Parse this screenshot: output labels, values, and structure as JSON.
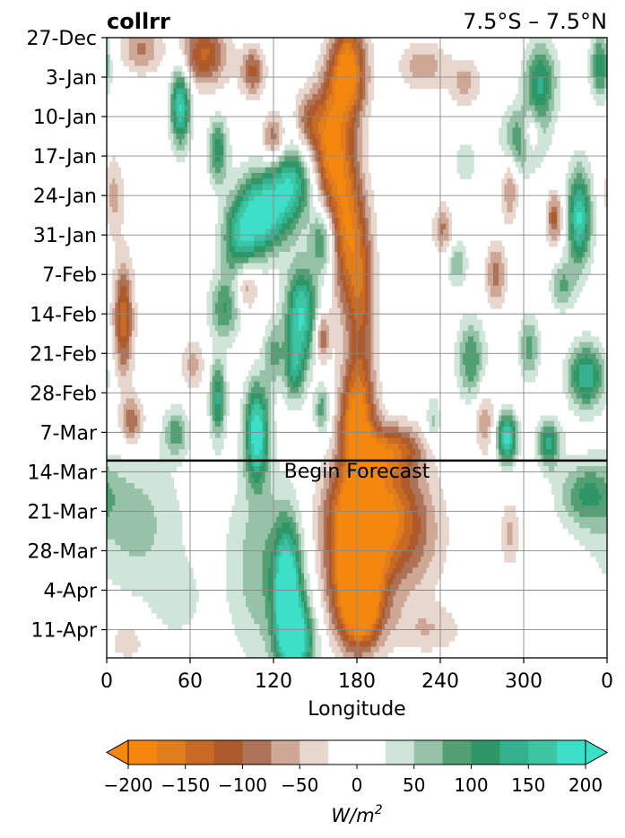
{
  "chart_data": {
    "type": "heatmap",
    "title_left": "collrr",
    "title_right": "7.5°S – 7.5°N",
    "xlabel": "Longitude",
    "x_ticks": [
      "0",
      "60",
      "120",
      "180",
      "240",
      "300",
      "0"
    ],
    "x_range": [
      0,
      360
    ],
    "y_ticks": [
      "27-Dec",
      "3-Jan",
      "10-Jan",
      "17-Jan",
      "24-Jan",
      "31-Jan",
      "7-Feb",
      "14-Feb",
      "21-Feb",
      "28-Feb",
      "7-Mar",
      "14-Mar",
      "21-Mar",
      "28-Mar",
      "4-Apr",
      "11-Apr"
    ],
    "y_range_days": [
      0,
      110
    ],
    "forecast_start_day": 75,
    "annotation": "Begin Forecast",
    "grid": true,
    "colorbar": {
      "label": "W/m²",
      "label_base": "W/m",
      "label_sup": "2",
      "ticks": [
        "−200",
        "−150",
        "−100",
        "−50",
        "0",
        "50",
        "100",
        "150",
        "200"
      ],
      "tick_values": [
        -200,
        -150,
        -100,
        -50,
        0,
        50,
        100,
        150,
        200
      ],
      "levels": [
        -200,
        -175,
        -150,
        -125,
        -100,
        -75,
        -50,
        -25,
        25,
        50,
        75,
        100,
        125,
        150,
        175,
        200
      ],
      "colors": [
        "#f4870f",
        "#e17d1c",
        "#c96a24",
        "#ad5a2c",
        "#ae7258",
        "#cfa796",
        "#e8d7ce",
        "#ffffff",
        "#d0e5da",
        "#96c2a8",
        "#52a073",
        "#2f9668",
        "#34b18e",
        "#3cc6a4",
        "#3ddfc9"
      ],
      "extend_low_color": "#f4870f",
      "extend_high_color": "#3ddfc9"
    },
    "features": [
      {
        "lon": 180,
        "day": 93,
        "a": -220,
        "sx": 15,
        "sy": 9
      },
      {
        "lon": 188,
        "day": 83,
        "a": -140,
        "sx": 20,
        "sy": 6
      },
      {
        "lon": 182,
        "day": 101,
        "a": -150,
        "sx": 10,
        "sy": 5
      },
      {
        "lon": 216,
        "day": 88,
        "a": -90,
        "sx": 18,
        "sy": 8
      },
      {
        "lon": 130,
        "day": 98,
        "a": 200,
        "sx": 7,
        "sy": 8
      },
      {
        "lon": 137,
        "day": 107,
        "a": 180,
        "sx": 9,
        "sy": 5
      },
      {
        "lon": 112,
        "day": 94,
        "a": 70,
        "sx": 18,
        "sy": 12
      },
      {
        "lon": 20,
        "day": 86,
        "a": 60,
        "sx": 25,
        "sy": 9
      },
      {
        "lon": 345,
        "day": 81,
        "a": 90,
        "sx": 14,
        "sy": 4
      },
      {
        "lon": 290,
        "day": 88,
        "a": -60,
        "sx": 5,
        "sy": 4
      },
      {
        "lon": 232,
        "day": 105,
        "a": -45,
        "sx": 18,
        "sy": 3
      },
      {
        "lon": 15,
        "day": 107,
        "a": -40,
        "sx": 12,
        "sy": 3
      },
      {
        "lon": 50,
        "day": 100,
        "a": 35,
        "sx": 14,
        "sy": 5
      },
      {
        "lon": 174,
        "day": 6,
        "a": -200,
        "sx": 9,
        "sy": 6
      },
      {
        "lon": 160,
        "day": 19,
        "a": -160,
        "sx": 8,
        "sy": 8
      },
      {
        "lon": 172,
        "day": 32,
        "a": -150,
        "sx": 8,
        "sy": 11
      },
      {
        "lon": 183,
        "day": 45,
        "a": -120,
        "sx": 7,
        "sy": 11
      },
      {
        "lon": 180,
        "day": 68,
        "a": -190,
        "sx": 9,
        "sy": 7
      },
      {
        "lon": 205,
        "day": 73,
        "a": -130,
        "sx": 15,
        "sy": 3
      },
      {
        "lon": 70,
        "day": 3,
        "a": -130,
        "sx": 12,
        "sy": 4
      },
      {
        "lon": 105,
        "day": 6,
        "a": -110,
        "sx": 6,
        "sy": 3
      },
      {
        "lon": 25,
        "day": 2,
        "a": -80,
        "sx": 10,
        "sy": 3
      },
      {
        "lon": 120,
        "day": 18,
        "a": -100,
        "sx": 6,
        "sy": 3
      },
      {
        "lon": 145,
        "day": 15,
        "a": -90,
        "sx": 7,
        "sy": 4
      },
      {
        "lon": 12,
        "day": 50,
        "a": -140,
        "sx": 5,
        "sy": 7
      },
      {
        "lon": 18,
        "day": 68,
        "a": -100,
        "sx": 6,
        "sy": 3
      },
      {
        "lon": 5,
        "day": 28,
        "a": -60,
        "sx": 5,
        "sy": 5
      },
      {
        "lon": 100,
        "day": 44,
        "a": -90,
        "sx": 6,
        "sy": 3
      },
      {
        "lon": 62,
        "day": 58,
        "a": -60,
        "sx": 6,
        "sy": 3
      },
      {
        "lon": 155,
        "day": 53,
        "a": -110,
        "sx": 4,
        "sy": 3
      },
      {
        "lon": 242,
        "day": 34,
        "a": -80,
        "sx": 5,
        "sy": 3
      },
      {
        "lon": 280,
        "day": 42,
        "a": -90,
        "sx": 5,
        "sy": 4
      },
      {
        "lon": 272,
        "day": 68,
        "a": -70,
        "sx": 5,
        "sy": 4
      },
      {
        "lon": 290,
        "day": 27,
        "a": -80,
        "sx": 4,
        "sy": 4
      },
      {
        "lon": 305,
        "day": 17,
        "a": -110,
        "sx": 5,
        "sy": 3
      },
      {
        "lon": 322,
        "day": 32,
        "a": -110,
        "sx": 4,
        "sy": 3
      },
      {
        "lon": 228,
        "day": 5,
        "a": -70,
        "sx": 12,
        "sy": 3
      },
      {
        "lon": 258,
        "day": 8,
        "a": -60,
        "sx": 8,
        "sy": 3
      },
      {
        "lon": 112,
        "day": 31,
        "a": 200,
        "sx": 12,
        "sy": 5
      },
      {
        "lon": 95,
        "day": 36,
        "a": 120,
        "sx": 9,
        "sy": 5
      },
      {
        "lon": 133,
        "day": 26,
        "a": 150,
        "sx": 10,
        "sy": 5
      },
      {
        "lon": 140,
        "day": 49,
        "a": 180,
        "sx": 8,
        "sy": 6
      },
      {
        "lon": 155,
        "day": 36,
        "a": 110,
        "sx": 6,
        "sy": 4
      },
      {
        "lon": 53,
        "day": 12,
        "a": 180,
        "sx": 5,
        "sy": 5
      },
      {
        "lon": 80,
        "day": 20,
        "a": 120,
        "sx": 5,
        "sy": 4
      },
      {
        "lon": 108,
        "day": 70,
        "a": 200,
        "sx": 6,
        "sy": 6
      },
      {
        "lon": 80,
        "day": 64,
        "a": 130,
        "sx": 4,
        "sy": 5
      },
      {
        "lon": 135,
        "day": 59,
        "a": 110,
        "sx": 5,
        "sy": 4
      },
      {
        "lon": 85,
        "day": 48,
        "a": 100,
        "sx": 8,
        "sy": 4
      },
      {
        "lon": 120,
        "day": 56,
        "a": 80,
        "sx": 5,
        "sy": 4
      },
      {
        "lon": 50,
        "day": 70,
        "a": 90,
        "sx": 6,
        "sy": 3
      },
      {
        "lon": 155,
        "day": 66,
        "a": 90,
        "sx": 4,
        "sy": 3
      },
      {
        "lon": 300,
        "day": 18,
        "a": 120,
        "sx": 10,
        "sy": 4
      },
      {
        "lon": 312,
        "day": 8,
        "a": 130,
        "sx": 8,
        "sy": 5
      },
      {
        "lon": 340,
        "day": 32,
        "a": 180,
        "sx": 6,
        "sy": 6
      },
      {
        "lon": 345,
        "day": 60,
        "a": 150,
        "sx": 9,
        "sy": 4
      },
      {
        "lon": 288,
        "day": 71,
        "a": 200,
        "sx": 5,
        "sy": 3
      },
      {
        "lon": 318,
        "day": 72,
        "a": 130,
        "sx": 6,
        "sy": 3
      },
      {
        "lon": 262,
        "day": 57,
        "a": 100,
        "sx": 7,
        "sy": 5
      },
      {
        "lon": 304,
        "day": 55,
        "a": 90,
        "sx": 5,
        "sy": 4
      },
      {
        "lon": 355,
        "day": 5,
        "a": 120,
        "sx": 5,
        "sy": 4
      },
      {
        "lon": 328,
        "day": 44,
        "a": 80,
        "sx": 6,
        "sy": 3
      },
      {
        "lon": 252,
        "day": 40,
        "a": 70,
        "sx": 5,
        "sy": 3
      },
      {
        "lon": 235,
        "day": 68,
        "a": 60,
        "sx": 4,
        "sy": 3
      },
      {
        "lon": 258,
        "day": 22,
        "a": 50,
        "sx": 5,
        "sy": 3
      }
    ]
  }
}
